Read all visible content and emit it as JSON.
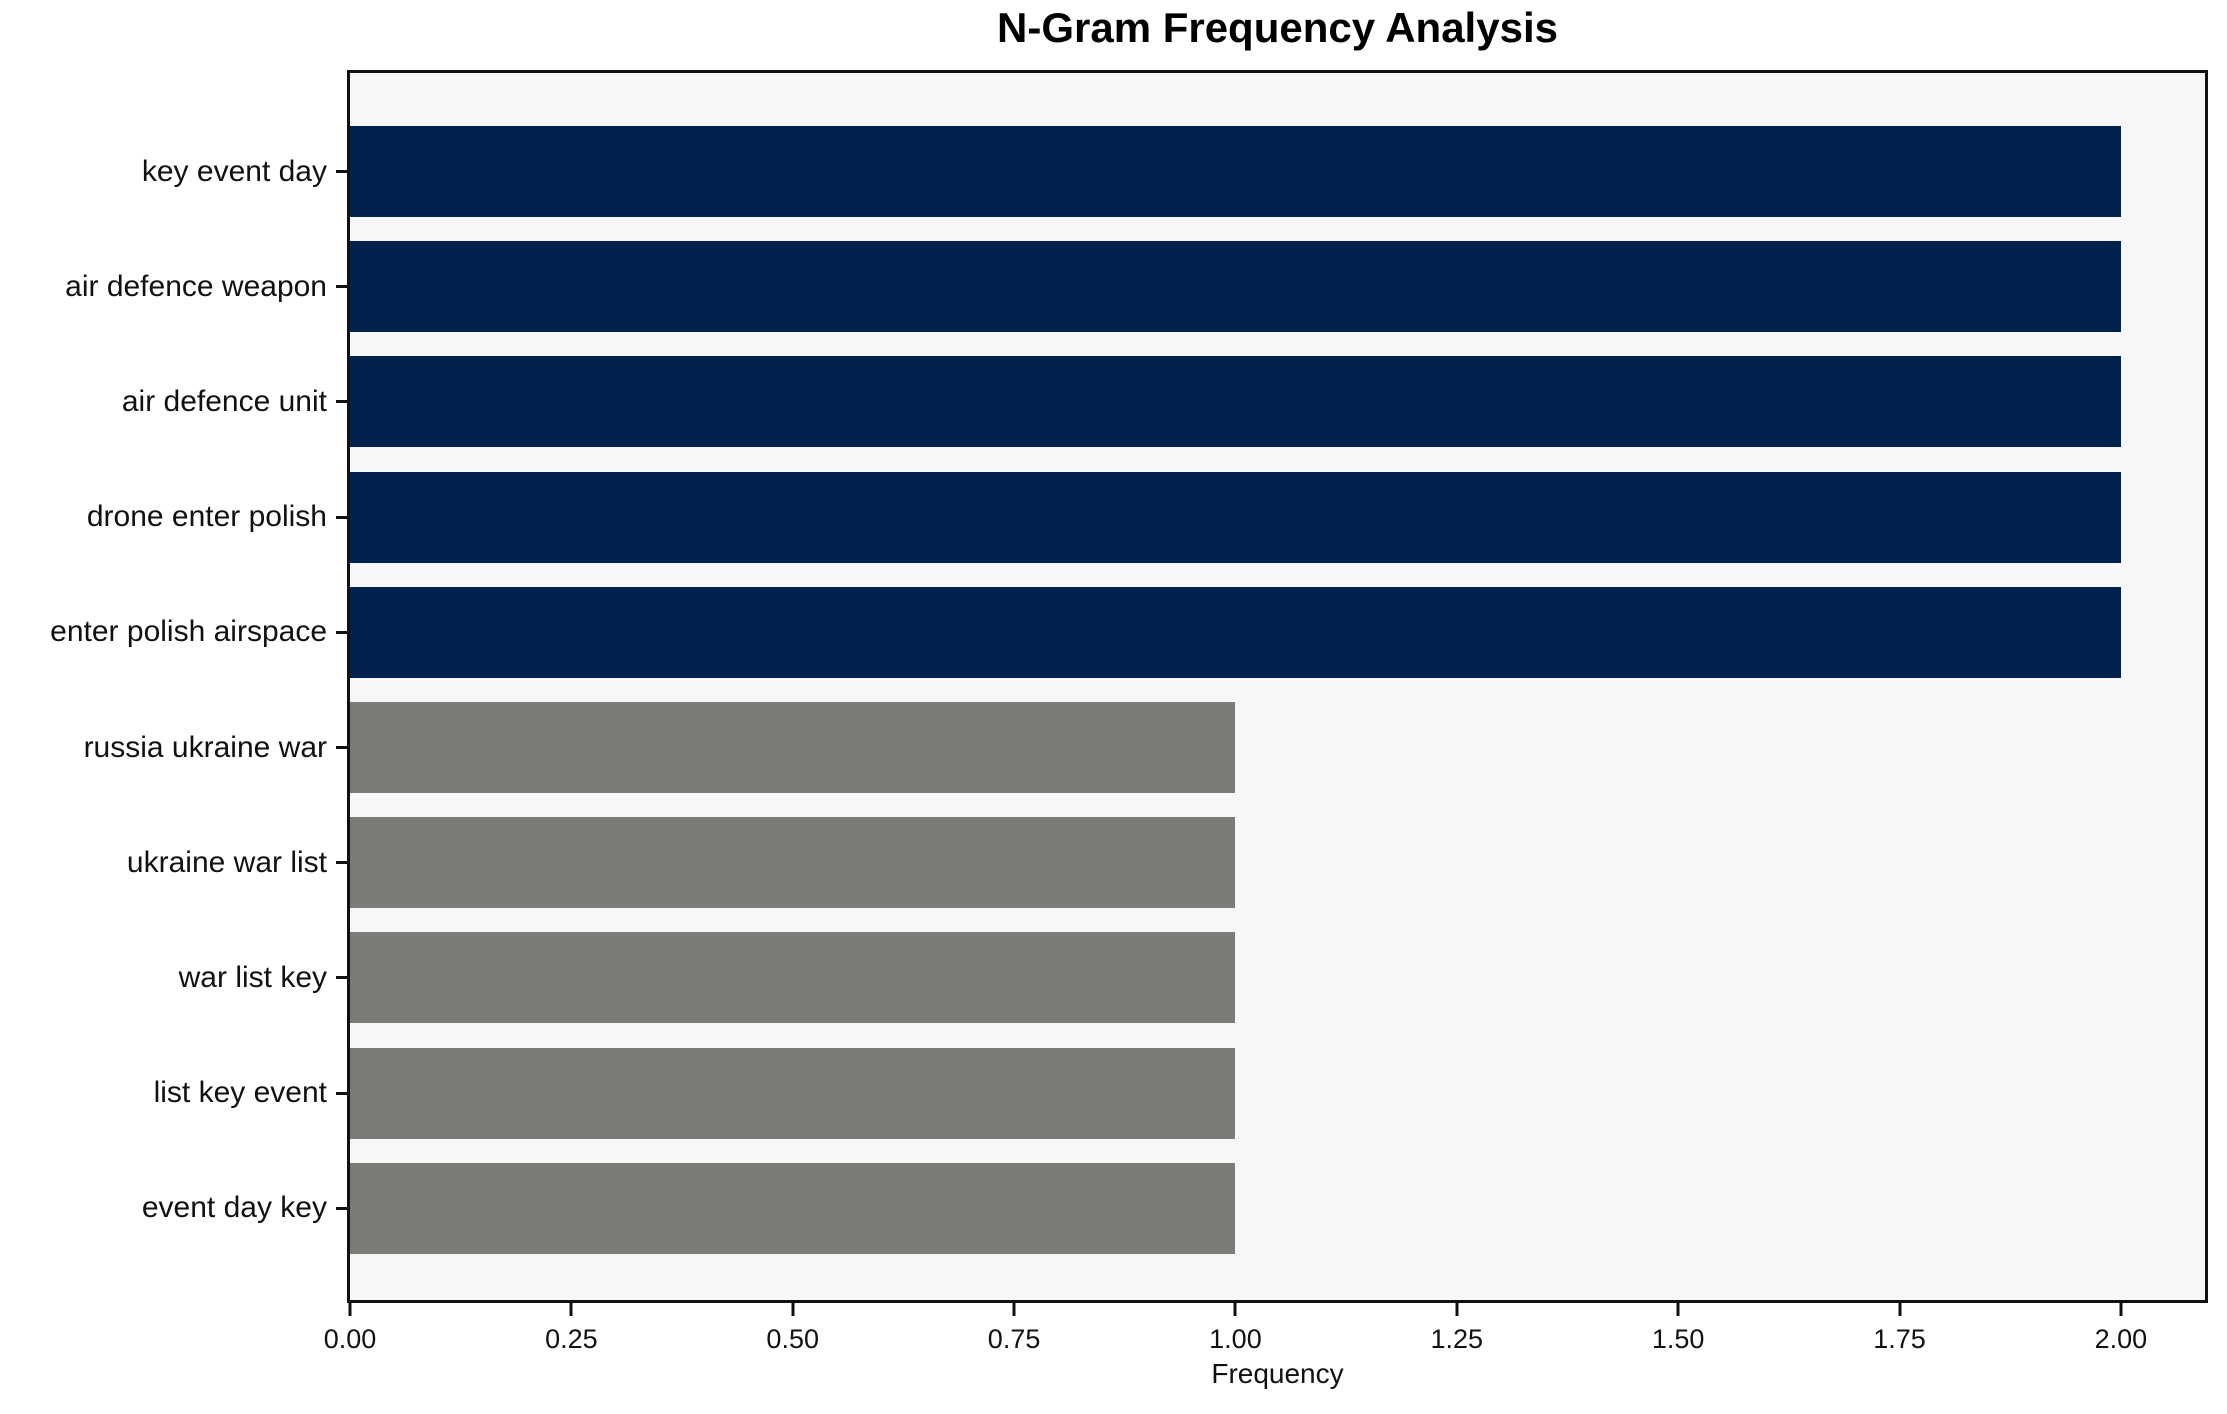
{
  "chart_data": {
    "type": "bar",
    "orientation": "horizontal",
    "title": "N-Gram Frequency Analysis",
    "xlabel": "Frequency",
    "ylabel": "",
    "categories": [
      "key event day",
      "air defence weapon",
      "air defence unit",
      "drone enter polish",
      "enter polish airspace",
      "russia ukraine war",
      "ukraine war list",
      "war list key",
      "list key event",
      "event day key"
    ],
    "values": [
      2,
      2,
      2,
      2,
      2,
      1,
      1,
      1,
      1,
      1
    ],
    "bar_colors": [
      "#01224d",
      "#01224d",
      "#01224d",
      "#01224d",
      "#01224d",
      "#7b7b78",
      "#7b7b78",
      "#7b7b78",
      "#7b7b78",
      "#7b7b78"
    ],
    "xlim": [
      0,
      2.095
    ],
    "xtick_values": [
      0,
      0.25,
      0.5,
      0.75,
      1.0,
      1.25,
      1.5,
      1.75,
      2.0
    ],
    "xtick_labels": [
      "0.00",
      "0.25",
      "0.50",
      "0.75",
      "1.00",
      "1.25",
      "1.50",
      "1.75",
      "2.00"
    ],
    "grid": false,
    "legend": null,
    "colors": {
      "high_frequency_bar": "#01224d",
      "low_frequency_bar": "#7b7b78",
      "plot_background": "#f7f7f7",
      "figure_background": "#ffffff",
      "spine": "#111111",
      "text": "#111111"
    }
  }
}
